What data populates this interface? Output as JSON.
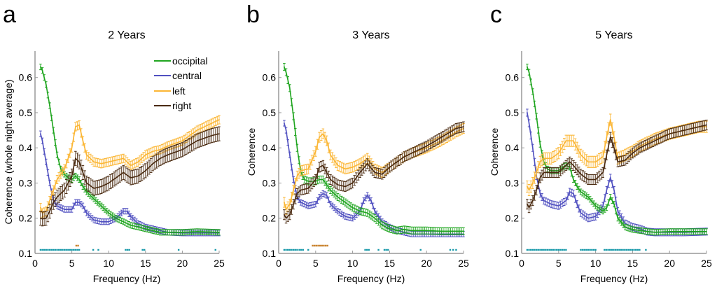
{
  "legend": {
    "entries": [
      {
        "key": "occipital",
        "label": "occipital",
        "color": "#1fa51f"
      },
      {
        "key": "central",
        "label": "central",
        "color": "#5050c0"
      },
      {
        "key": "left",
        "label": "left",
        "color": "#fbb634"
      },
      {
        "key": "right",
        "label": "right",
        "color": "#4a2a10"
      }
    ],
    "location": "top-right of panel a"
  },
  "significance_colors": {
    "teal": "#1a9aaa",
    "orange": "#c8802a"
  },
  "chart_data": [
    {
      "type": "line",
      "panel_letter": "a",
      "title": "2 Years",
      "xlabel": "Frequency (Hz)",
      "ylabel": "Coherence (whole night average)",
      "xlim": [
        0,
        25
      ],
      "ylim": [
        0.1,
        0.675
      ],
      "xticks": [
        "0",
        "5",
        "10",
        "15",
        "20",
        "25"
      ],
      "xtick_values": [
        0,
        5,
        10,
        15,
        20,
        25
      ],
      "yticks": [
        "0.1",
        "0.2",
        "0.3",
        "0.4",
        "0.5",
        "0.6"
      ],
      "ytick_values": [
        0.1,
        0.2,
        0.3,
        0.4,
        0.5,
        0.6
      ],
      "grid": false,
      "error_bars": true,
      "series": [
        {
          "name": "occipital",
          "err": 0.008,
          "x": [
            0.75,
            1,
            1.5,
            2,
            2.5,
            3,
            3.5,
            4,
            4.5,
            5,
            5.5,
            6,
            6.5,
            7,
            8,
            9,
            10,
            11,
            12,
            13,
            14,
            15,
            16,
            17,
            18,
            20,
            22,
            25
          ],
          "y": [
            0.63,
            0.62,
            0.58,
            0.52,
            0.45,
            0.38,
            0.34,
            0.325,
            0.315,
            0.31,
            0.32,
            0.31,
            0.29,
            0.275,
            0.255,
            0.235,
            0.215,
            0.2,
            0.19,
            0.18,
            0.175,
            0.17,
            0.165,
            0.16,
            0.16,
            0.16,
            0.162,
            0.16
          ]
        },
        {
          "name": "central",
          "err": 0.008,
          "x": [
            0.75,
            1,
            1.5,
            2,
            2.5,
            3,
            4,
            5,
            5.5,
            6,
            6.5,
            7,
            8,
            9,
            10,
            11,
            12,
            12.5,
            13,
            14,
            15,
            16,
            17,
            18,
            20,
            22,
            25
          ],
          "y": [
            0.44,
            0.42,
            0.36,
            0.3,
            0.25,
            0.235,
            0.225,
            0.225,
            0.245,
            0.245,
            0.235,
            0.215,
            0.195,
            0.19,
            0.19,
            0.2,
            0.22,
            0.22,
            0.205,
            0.185,
            0.175,
            0.17,
            0.165,
            0.16,
            0.158,
            0.158,
            0.158
          ]
        },
        {
          "name": "left",
          "err": 0.012,
          "x": [
            0.75,
            1,
            1.5,
            2,
            2.5,
            3,
            4,
            5,
            5.5,
            6,
            6.5,
            7,
            8,
            9,
            10,
            11,
            12,
            13,
            14,
            15,
            16,
            17,
            18,
            20,
            22,
            24,
            25
          ],
          "y": [
            0.23,
            0.215,
            0.22,
            0.25,
            0.28,
            0.31,
            0.34,
            0.4,
            0.46,
            0.465,
            0.42,
            0.38,
            0.36,
            0.355,
            0.36,
            0.365,
            0.37,
            0.35,
            0.36,
            0.38,
            0.39,
            0.395,
            0.405,
            0.42,
            0.45,
            0.47,
            0.48
          ]
        },
        {
          "name": "right",
          "err": 0.02,
          "x": [
            0.75,
            1,
            1.5,
            2,
            2.5,
            3,
            4,
            5,
            5.5,
            6,
            6.5,
            7,
            8,
            9,
            10,
            11,
            12,
            13,
            14,
            15,
            16,
            17,
            18,
            20,
            22,
            24,
            25
          ],
          "y": [
            0.2,
            0.198,
            0.2,
            0.22,
            0.245,
            0.26,
            0.28,
            0.32,
            0.37,
            0.36,
            0.33,
            0.3,
            0.285,
            0.29,
            0.3,
            0.315,
            0.33,
            0.315,
            0.32,
            0.335,
            0.355,
            0.37,
            0.38,
            0.395,
            0.42,
            0.435,
            0.44
          ]
        }
      ],
      "significance": {
        "teal_y": 0.11,
        "teal_ranges": [
          [
            0.75,
            6.2
          ],
          [
            7.9,
            7.9
          ],
          [
            8.6,
            8.6
          ],
          [
            12.3,
            13.0
          ],
          [
            14.6,
            15.0
          ],
          [
            19.5,
            19.5
          ],
          [
            24.5,
            24.5
          ]
        ],
        "orange_y": 0.122,
        "orange_ranges": [
          [
            5.6,
            6.0
          ]
        ]
      }
    },
    {
      "type": "line",
      "panel_letter": "b",
      "title": "3 Years",
      "xlabel": "Frequency (Hz)",
      "ylabel": "Coherence",
      "xlim": [
        0,
        25
      ],
      "ylim": [
        0.1,
        0.675
      ],
      "xticks": [
        "0",
        "5",
        "10",
        "15",
        "20",
        "25"
      ],
      "xtick_values": [
        0,
        5,
        10,
        15,
        20,
        25
      ],
      "yticks": [
        "0.1",
        "0.2",
        "0.3",
        "0.4",
        "0.5",
        "0.6"
      ],
      "ytick_values": [
        0.1,
        0.2,
        0.3,
        0.4,
        0.5,
        0.6
      ],
      "grid": false,
      "error_bars": true,
      "series": [
        {
          "name": "occipital",
          "err": 0.01,
          "x": [
            0.75,
            1,
            1.5,
            2,
            2.5,
            3,
            3.5,
            4,
            5,
            5.5,
            6,
            6.5,
            7,
            8,
            9,
            10,
            11,
            12,
            13,
            14,
            15,
            16,
            17,
            18,
            20,
            22,
            25
          ],
          "y": [
            0.63,
            0.615,
            0.57,
            0.49,
            0.4,
            0.33,
            0.31,
            0.305,
            0.305,
            0.31,
            0.31,
            0.295,
            0.28,
            0.26,
            0.245,
            0.23,
            0.22,
            0.215,
            0.2,
            0.18,
            0.17,
            0.165,
            0.168,
            0.165,
            0.165,
            0.163,
            0.163
          ]
        },
        {
          "name": "central",
          "err": 0.008,
          "x": [
            0.75,
            1,
            1.5,
            2,
            2.5,
            3,
            4,
            5,
            5.5,
            6,
            6.5,
            7,
            8,
            9,
            10,
            11,
            11.5,
            12,
            12.5,
            13,
            14,
            15,
            16,
            17,
            18,
            20,
            22,
            25
          ],
          "y": [
            0.47,
            0.45,
            0.38,
            0.31,
            0.26,
            0.245,
            0.235,
            0.24,
            0.26,
            0.27,
            0.265,
            0.24,
            0.22,
            0.205,
            0.2,
            0.22,
            0.25,
            0.265,
            0.25,
            0.22,
            0.19,
            0.175,
            0.165,
            0.16,
            0.155,
            0.155,
            0.155,
            0.155
          ]
        },
        {
          "name": "left",
          "err": 0.014,
          "x": [
            0.75,
            1,
            1.5,
            2,
            2.5,
            3,
            4,
            5,
            5.5,
            6,
            6.5,
            7,
            8,
            9,
            10,
            11,
            12,
            13,
            14,
            15,
            16,
            17,
            18,
            20,
            22,
            24,
            25
          ],
          "y": [
            0.245,
            0.225,
            0.24,
            0.28,
            0.32,
            0.335,
            0.34,
            0.39,
            0.43,
            0.44,
            0.42,
            0.38,
            0.35,
            0.34,
            0.345,
            0.355,
            0.37,
            0.34,
            0.33,
            0.345,
            0.36,
            0.375,
            0.385,
            0.4,
            0.42,
            0.445,
            0.455
          ]
        },
        {
          "name": "right",
          "err": 0.014,
          "x": [
            0.75,
            1,
            1.5,
            2,
            2.5,
            3,
            4,
            5,
            5.5,
            6,
            6.5,
            7,
            8,
            9,
            10,
            11,
            12,
            13,
            14,
            15,
            16,
            17,
            18,
            20,
            22,
            24,
            25
          ],
          "y": [
            0.21,
            0.2,
            0.21,
            0.24,
            0.27,
            0.28,
            0.285,
            0.31,
            0.345,
            0.35,
            0.33,
            0.31,
            0.295,
            0.29,
            0.3,
            0.33,
            0.355,
            0.33,
            0.325,
            0.345,
            0.36,
            0.375,
            0.385,
            0.405,
            0.43,
            0.455,
            0.46
          ]
        }
      ],
      "significance": {
        "teal_y": 0.11,
        "teal_ranges": [
          [
            0.75,
            2.5
          ],
          [
            2.8,
            3.5
          ],
          [
            4.0,
            4.2
          ],
          [
            11.7,
            12.3
          ],
          [
            13.5,
            13.5
          ],
          [
            14.3,
            14.8
          ],
          [
            19.2,
            19.2
          ],
          [
            23.2,
            23.2
          ],
          [
            23.6,
            23.6
          ],
          [
            24.0,
            24.0
          ]
        ],
        "orange_y": 0.122,
        "orange_ranges": [
          [
            4.6,
            6.7
          ]
        ]
      }
    },
    {
      "type": "line",
      "panel_letter": "c",
      "title": "5 Years",
      "xlabel": "Frequency (Hz)",
      "ylabel": "Coherence",
      "xlim": [
        0,
        25
      ],
      "ylim": [
        0.1,
        0.675
      ],
      "xticks": [
        "0",
        "5",
        "10",
        "15",
        "20",
        "25"
      ],
      "xtick_values": [
        0,
        5,
        10,
        15,
        20,
        25
      ],
      "yticks": [
        "0.1",
        "0.2",
        "0.3",
        "0.4",
        "0.5",
        "0.6"
      ],
      "ytick_values": [
        0.1,
        0.2,
        0.3,
        0.4,
        0.5,
        0.6
      ],
      "grid": false,
      "error_bars": true,
      "series": [
        {
          "name": "occipital",
          "err": 0.008,
          "x": [
            0.75,
            1,
            1.5,
            2,
            2.5,
            3,
            3.5,
            4,
            5,
            5.5,
            6,
            6.5,
            7,
            7.5,
            8,
            9,
            10,
            11,
            11.5,
            12,
            12.5,
            13,
            14,
            15,
            16,
            17,
            18,
            20,
            22,
            25
          ],
          "y": [
            0.63,
            0.615,
            0.56,
            0.49,
            0.41,
            0.36,
            0.34,
            0.335,
            0.335,
            0.345,
            0.35,
            0.345,
            0.31,
            0.29,
            0.275,
            0.26,
            0.235,
            0.22,
            0.23,
            0.26,
            0.24,
            0.2,
            0.175,
            0.168,
            0.165,
            0.162,
            0.16,
            0.162,
            0.162,
            0.162
          ]
        },
        {
          "name": "central",
          "err": 0.01,
          "x": [
            0.75,
            1,
            1.5,
            2,
            2.5,
            3,
            4,
            5,
            6,
            6.5,
            7,
            7.5,
            8,
            9,
            10,
            11,
            11.5,
            12,
            12.5,
            13,
            14,
            15,
            16,
            17,
            18,
            20,
            22,
            25
          ],
          "y": [
            0.5,
            0.47,
            0.4,
            0.32,
            0.27,
            0.25,
            0.24,
            0.235,
            0.25,
            0.275,
            0.27,
            0.24,
            0.215,
            0.2,
            0.205,
            0.235,
            0.28,
            0.315,
            0.28,
            0.22,
            0.185,
            0.175,
            0.17,
            0.162,
            0.16,
            0.16,
            0.16,
            0.162
          ]
        },
        {
          "name": "left",
          "err": 0.016,
          "x": [
            0.75,
            1,
            1.5,
            2,
            2.5,
            3,
            4,
            5,
            6,
            7,
            8,
            9,
            10,
            11,
            11.5,
            12,
            12.5,
            13,
            14,
            15,
            16,
            17,
            18,
            20,
            22,
            24,
            25
          ],
          "y": [
            0.29,
            0.28,
            0.3,
            0.33,
            0.36,
            0.37,
            0.37,
            0.385,
            0.42,
            0.42,
            0.38,
            0.36,
            0.36,
            0.375,
            0.43,
            0.48,
            0.43,
            0.37,
            0.38,
            0.39,
            0.405,
            0.415,
            0.425,
            0.44,
            0.45,
            0.46,
            0.46
          ]
        },
        {
          "name": "right",
          "err": 0.014,
          "x": [
            0.75,
            1,
            1.5,
            2,
            2.5,
            3,
            4,
            5,
            6,
            6.5,
            7,
            8,
            9,
            10,
            11,
            11.5,
            12,
            12.5,
            13,
            14,
            15,
            16,
            17,
            18,
            20,
            22,
            24,
            25
          ],
          "y": [
            0.24,
            0.23,
            0.25,
            0.28,
            0.315,
            0.33,
            0.33,
            0.33,
            0.35,
            0.36,
            0.35,
            0.325,
            0.31,
            0.31,
            0.33,
            0.38,
            0.43,
            0.4,
            0.36,
            0.365,
            0.385,
            0.4,
            0.41,
            0.42,
            0.44,
            0.45,
            0.46,
            0.465
          ]
        }
      ],
      "significance": {
        "teal_y": 0.11,
        "teal_ranges": [
          [
            0.75,
            6.0
          ],
          [
            8.0,
            10.0
          ],
          [
            11.2,
            16.0
          ],
          [
            16.8,
            16.8
          ]
        ],
        "orange_y": 0.122,
        "orange_ranges": []
      }
    }
  ]
}
